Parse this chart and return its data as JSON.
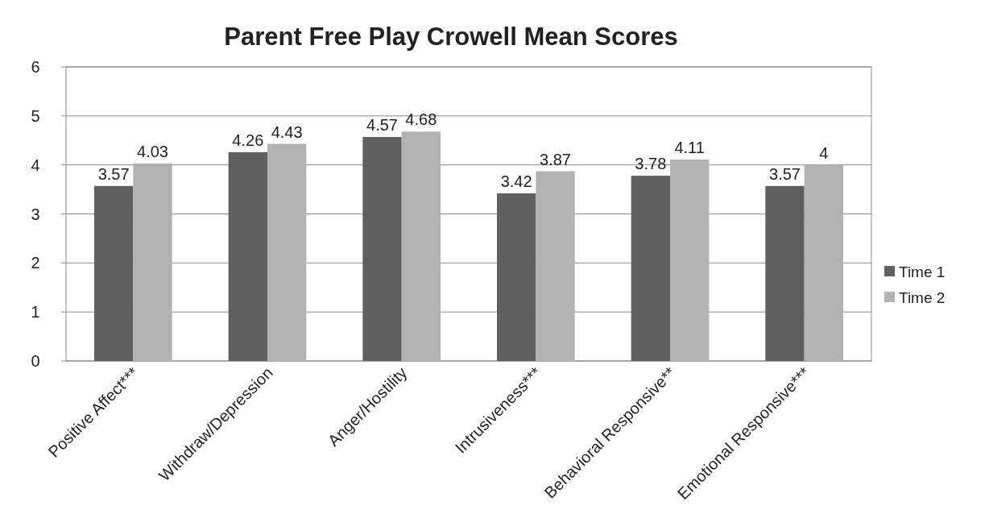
{
  "chart_data": {
    "type": "bar",
    "title": "Parent Free Play Crowell Mean Scores",
    "categories": [
      "Positive Affect***",
      "Withdraw/Depression",
      "Anger/Hostility",
      "Intrusiveness***",
      "Behavioral Responsive**",
      "Emotional Responsive***"
    ],
    "series": [
      {
        "name": "Time 1",
        "color": "#5f5f5f",
        "values": [
          3.57,
          4.26,
          4.57,
          3.42,
          3.78,
          3.57
        ]
      },
      {
        "name": "Time 2",
        "color": "#b2b2b2",
        "values": [
          4.03,
          4.43,
          4.68,
          3.87,
          4.11,
          4
        ]
      }
    ],
    "ylim": [
      0,
      6
    ],
    "yticks": [
      0,
      1,
      2,
      3,
      4,
      5,
      6
    ],
    "grid": "y",
    "legend": "right",
    "data_labels": true
  }
}
